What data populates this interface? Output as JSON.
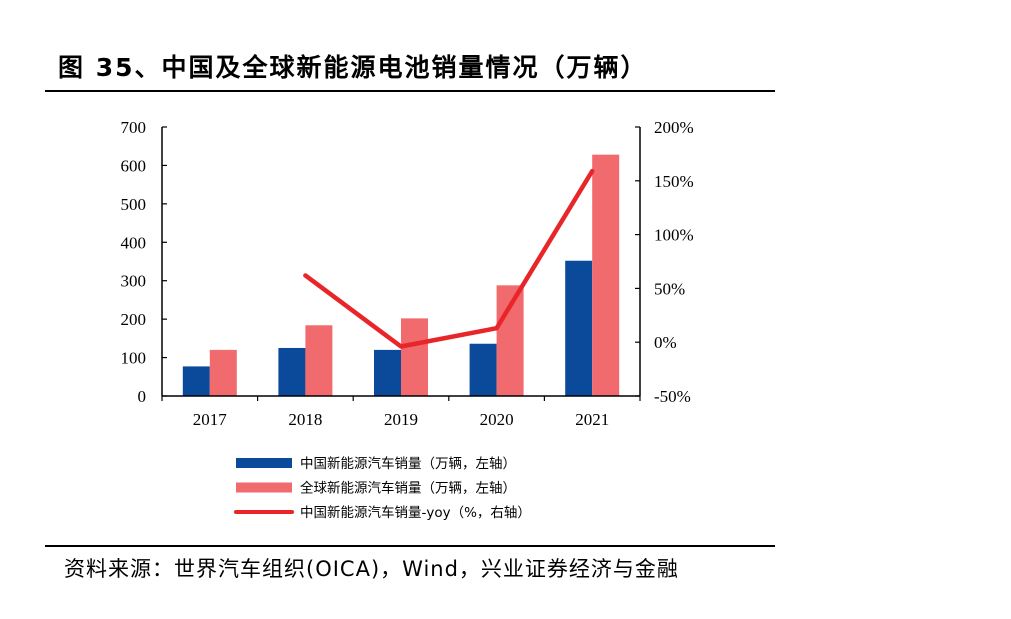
{
  "title": "图 35、中国及全球新能源电池销量情况（万辆）",
  "source": "资料来源：世界汽车组织(OICA)，Wind，兴业证券经济与金融",
  "chart_data": {
    "type": "bar",
    "categories": [
      "2017",
      "2018",
      "2019",
      "2020",
      "2021"
    ],
    "series": [
      {
        "name": "中国新能源汽车销量（万辆，左轴）",
        "type": "bar",
        "axis": "left",
        "color": "#0b4a9a",
        "values": [
          77,
          125,
          120,
          136,
          352
        ]
      },
      {
        "name": "全球新能源汽车销量（万辆，左轴）",
        "type": "bar",
        "axis": "left",
        "color": "#f06a6e",
        "values": [
          120,
          184,
          202,
          288,
          628
        ]
      },
      {
        "name": "中国新能源汽车销量-yoy（%，右轴）",
        "type": "line",
        "axis": "right",
        "color": "#e8262a",
        "values": [
          null,
          62,
          -4,
          13,
          159
        ]
      }
    ],
    "left_axis": {
      "min": 0,
      "max": 700,
      "ticks": [
        0,
        100,
        200,
        300,
        400,
        500,
        600,
        700
      ]
    },
    "right_axis": {
      "min": -50,
      "max": 200,
      "ticks": [
        -50,
        0,
        50,
        100,
        150,
        200
      ],
      "tick_labels": [
        "-50%",
        "0%",
        "50%",
        "100%",
        "150%",
        "200%"
      ]
    },
    "legend_position": "bottom",
    "grid": false
  }
}
